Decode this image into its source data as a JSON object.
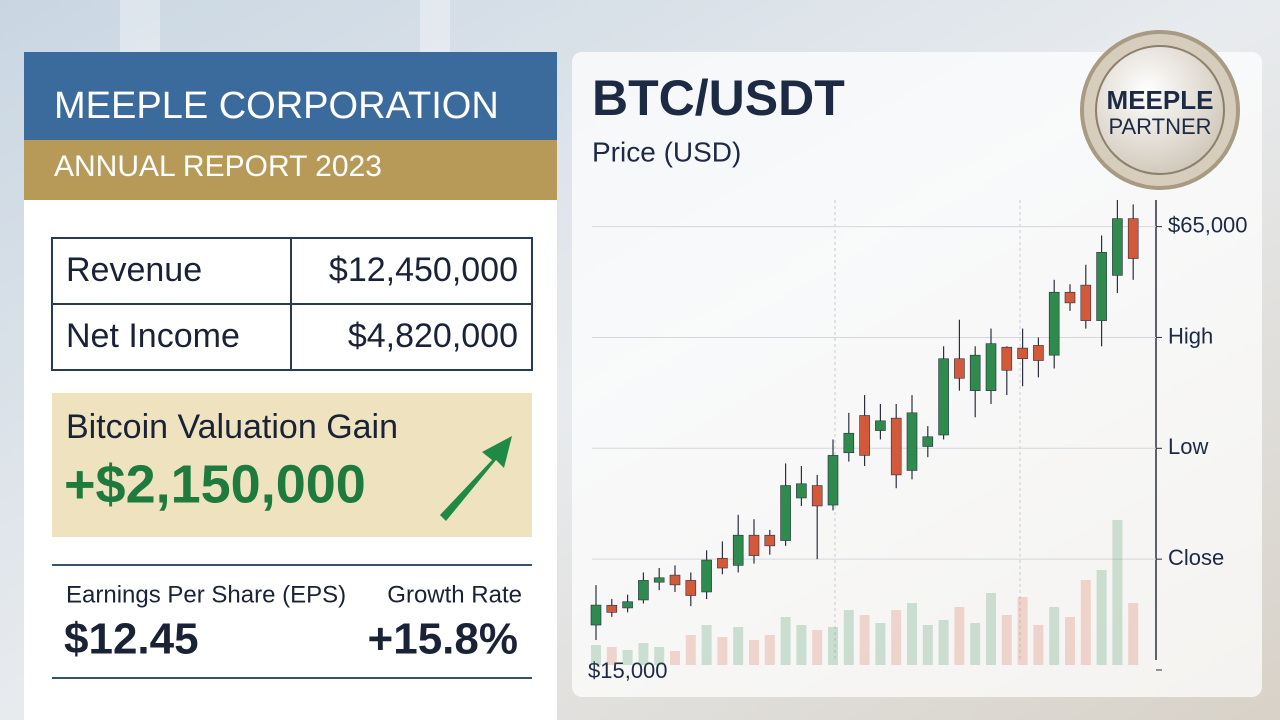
{
  "header": {
    "company": "MEEPLE CORPORATION",
    "report": "ANNUAL REPORT 2023"
  },
  "financials": {
    "rows": [
      [
        "Revenue",
        "$12,450,000"
      ],
      [
        "Net Income",
        "$4,820,000"
      ]
    ]
  },
  "highlight": {
    "label": "Bitcoin Valuation Gain",
    "value": "+$2,150,000"
  },
  "metrics": [
    {
      "label": "Earnings Per Share (EPS)",
      "value": "$12.45"
    },
    {
      "label": "Growth Rate",
      "value": "+15.8%"
    }
  ],
  "badge": [
    "MEEPLE",
    "PARTNER"
  ],
  "chart_data": {
    "type": "candlestick",
    "title": "BTC/USDT",
    "subtitle": "Price (USD)",
    "up_color": "#2f8a4e",
    "down_color": "#d2593a",
    "open": [
      20070,
      22300,
      22000,
      22900,
      24900,
      25700,
      25100,
      23800,
      27600,
      26800,
      30200,
      30200,
      29600,
      34400,
      35800,
      33600,
      39500,
      43700,
      42000,
      43400,
      37500,
      40200,
      41500,
      50100,
      46500,
      46500,
      51400,
      51300,
      51600,
      50500,
      57600,
      58400,
      54400,
      59500,
      65900
    ],
    "high": [
      24570,
      23000,
      23500,
      26000,
      26500,
      26800,
      26000,
      28500,
      29500,
      32500,
      32000,
      30800,
      38300,
      38000,
      37000,
      41000,
      44000,
      46000,
      45000,
      45000,
      46000,
      42500,
      51500,
      54500,
      51500,
      53500,
      51500,
      53500,
      52500,
      59000,
      58500,
      60700,
      64000,
      68000,
      67500
    ],
    "low": [
      18380,
      21000,
      21500,
      22500,
      24000,
      23800,
      22200,
      23000,
      25800,
      26000,
      27000,
      28000,
      29000,
      33500,
      27500,
      33000,
      38500,
      38000,
      41000,
      35500,
      36500,
      39000,
      41000,
      46500,
      43500,
      45000,
      46000,
      47000,
      48000,
      49000,
      55500,
      53500,
      51500,
      57500,
      59000
    ],
    "close": [
      22320,
      21500,
      22700,
      25100,
      25400,
      24600,
      23400,
      27400,
      26500,
      30200,
      27900,
      29000,
      35800,
      36000,
      33500,
      39200,
      41700,
      39200,
      43100,
      37000,
      44000,
      41300,
      50100,
      47900,
      50500,
      51800,
      48800,
      50100,
      49900,
      57600,
      56400,
      54400,
      62100,
      65900,
      61400
    ],
    "volume": [
      20,
      18,
      15,
      22,
      18,
      14,
      30,
      40,
      28,
      38,
      25,
      30,
      48,
      40,
      35,
      38,
      55,
      50,
      42,
      55,
      62,
      40,
      45,
      58,
      42,
      72,
      50,
      68,
      40,
      58,
      48,
      85,
      95,
      145,
      62
    ],
    "ylim": [
      15000,
      68000
    ],
    "yticks": [
      {
        "value": 15000,
        "label": "$15,000"
      },
      {
        "value": 27500,
        "label": "Close"
      },
      {
        "value": 40000,
        "label": "Low"
      },
      {
        "value": 52500,
        "label": "High"
      },
      {
        "value": 65000,
        "label": "$65,000"
      }
    ],
    "grid": true
  }
}
